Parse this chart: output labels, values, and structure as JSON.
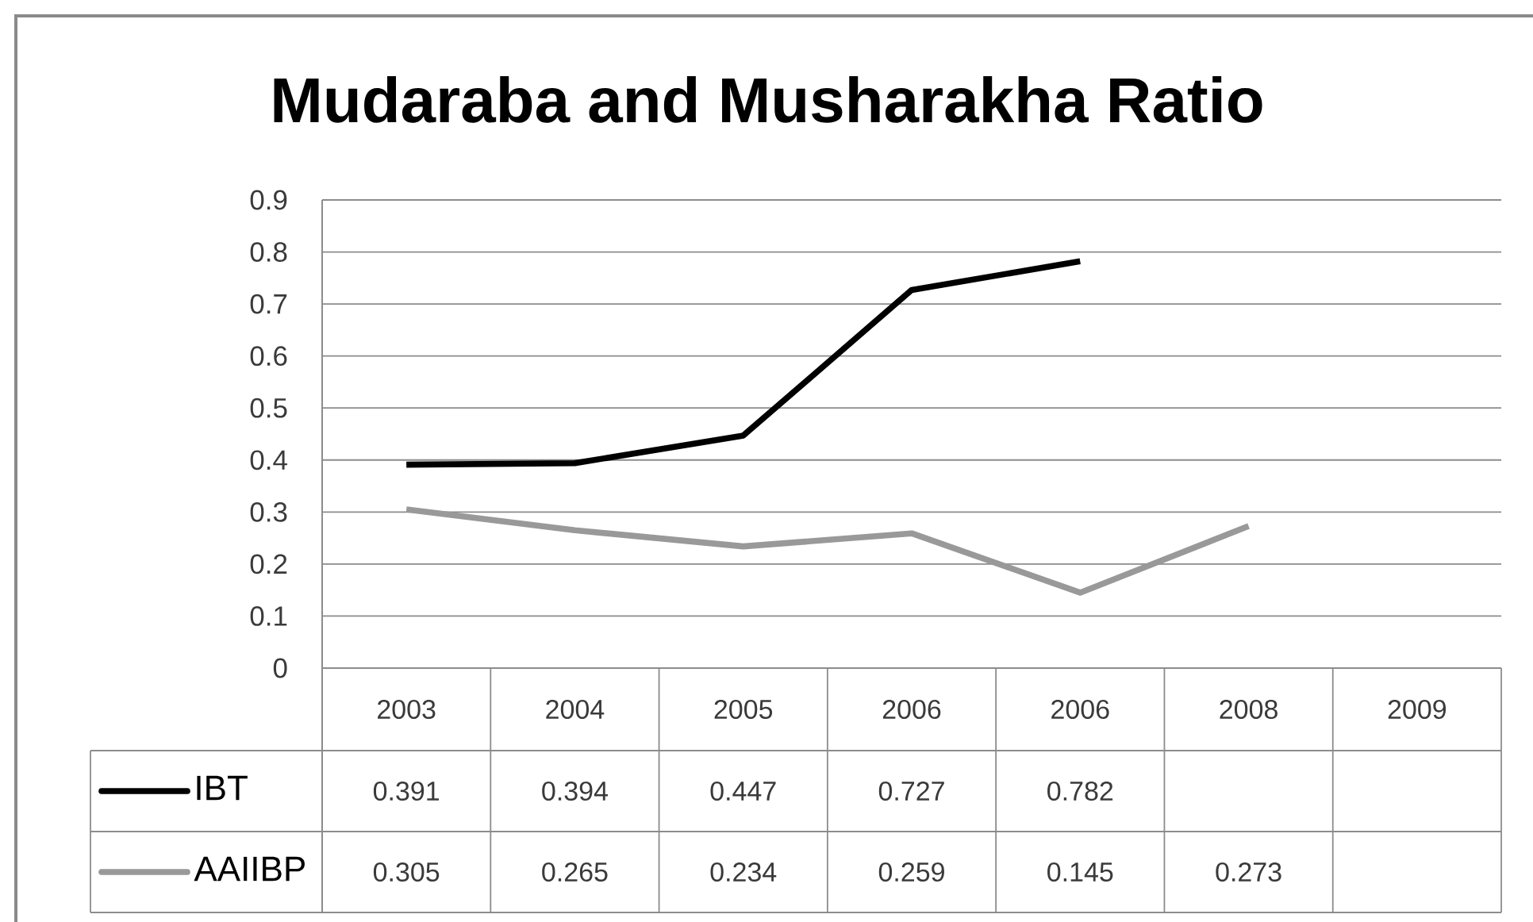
{
  "chart_data": {
    "type": "line",
    "title": "Mudaraba and Musharakha Ratio",
    "categories": [
      "2003",
      "2004",
      "2005",
      "2006",
      "2006",
      "2008",
      "2009"
    ],
    "series": [
      {
        "name": "IBT",
        "color": "#000000",
        "values": [
          0.391,
          0.394,
          0.447,
          0.727,
          0.782,
          null,
          null
        ]
      },
      {
        "name": "AAIIBP",
        "color": "#999999",
        "values": [
          0.305,
          0.265,
          0.234,
          0.259,
          0.145,
          0.273,
          null
        ]
      }
    ],
    "ylim": [
      0,
      0.9
    ],
    "yticks": [
      0,
      0.1,
      0.2,
      0.3,
      0.4,
      0.5,
      0.6,
      0.7,
      0.8,
      0.9
    ],
    "grid": "y",
    "legend": "bottom left",
    "data_labels": true,
    "marker": "none",
    "line_style": "solid"
  }
}
